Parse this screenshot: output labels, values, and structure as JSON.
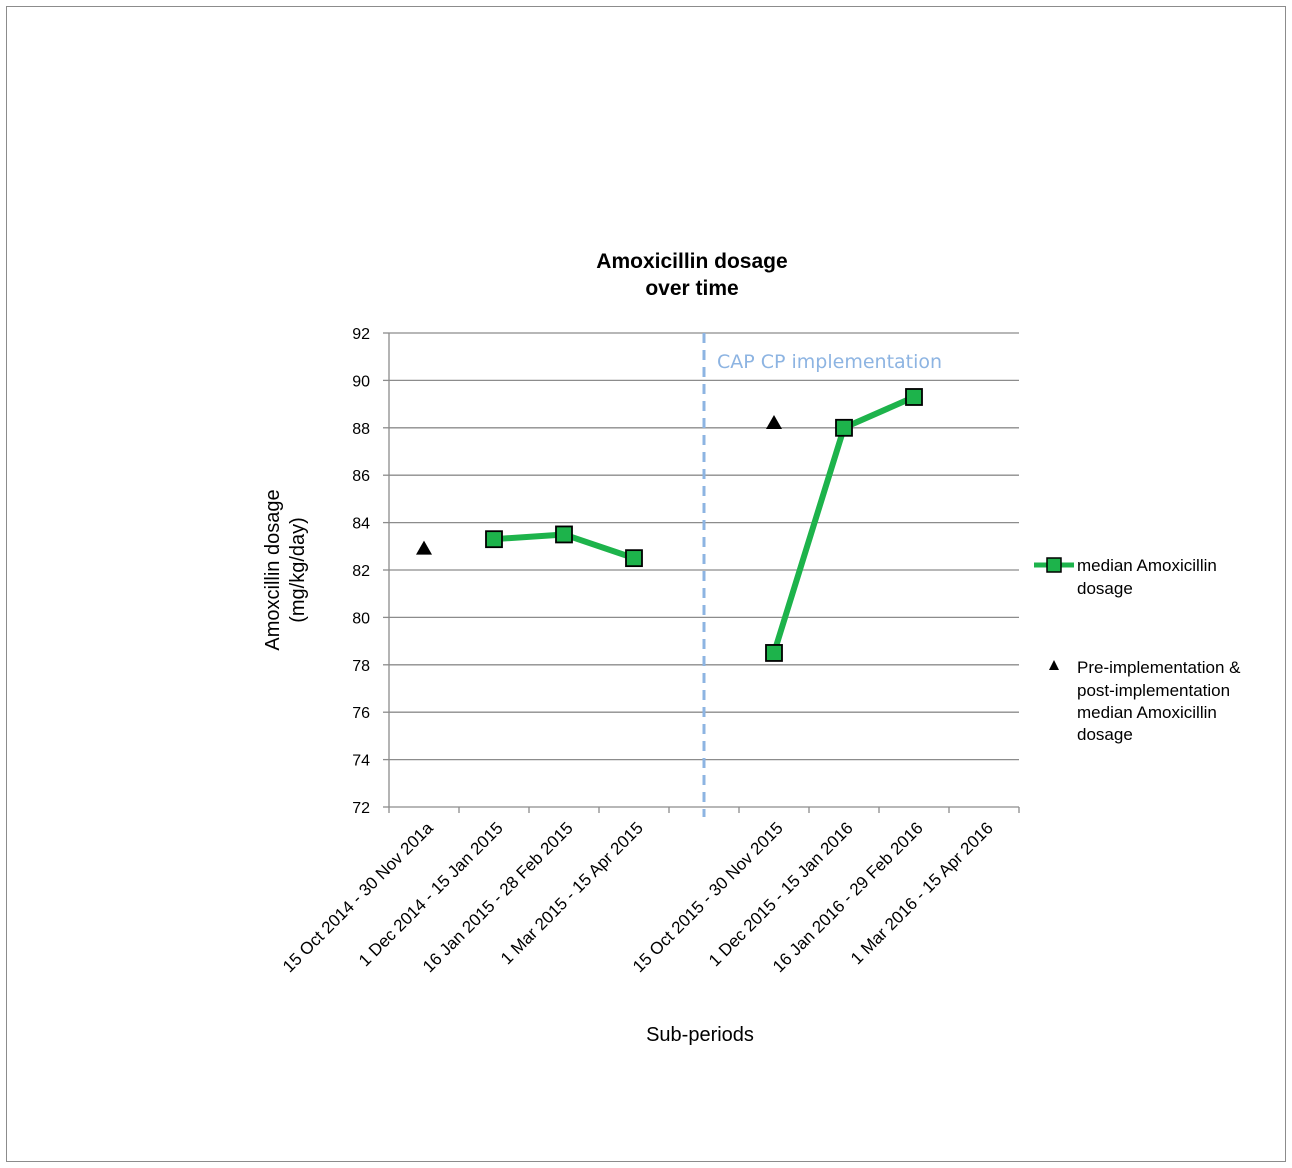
{
  "chart_data": {
    "type": "line",
    "title_lines": [
      "Amoxicillin dosage",
      "over time"
    ],
    "xlabel": "Sub-periods",
    "ylabel_lines": [
      "Amoxcillin dosage",
      "(mg/kg/day)"
    ],
    "ylim": [
      72,
      92
    ],
    "yticks": [
      72,
      74,
      76,
      78,
      80,
      82,
      84,
      86,
      88,
      90,
      92
    ],
    "categories": [
      "15 Oct 2014 - 30 Nov 201a",
      "1 Dec 2014 - 15 Jan 2015",
      "16 Jan 2015 - 28 Feb 2015",
      "1 Mar 2015 - 15 Apr 2015",
      "",
      "15 Oct 2015 - 30 Nov 2015",
      "1 Dec 2015 - 15 Jan 2016",
      "16 Jan 2016 - 29 Feb 2016",
      "1 Mar 2016 - 15 Apr 2016"
    ],
    "series": [
      {
        "name": "median Amoxicillin dosage",
        "marker": "square",
        "color": "#1db34b",
        "segments": [
          [
            {
              "category": 1,
              "value": 83.3
            },
            {
              "category": 2,
              "value": 83.5
            },
            {
              "category": 3,
              "value": 82.5
            }
          ],
          [
            {
              "category": 5,
              "value": 78.5
            },
            {
              "category": 6,
              "value": 88.0
            },
            {
              "category": 7,
              "value": 89.3
            }
          ]
        ]
      },
      {
        "name": "Pre-implementation & post-implementation median Amoxicillin dosage",
        "legend_lines": [
          "Pre-implementation &",
          "post-implementation",
          "median Amoxicillin",
          "dosage"
        ],
        "marker": "triangle",
        "color": "#000000",
        "points": [
          {
            "category": 0,
            "value": 82.9
          },
          {
            "category": 5,
            "value": 88.2
          }
        ]
      }
    ],
    "legend_lines_series1": [
      "median Amoxicillin",
      "dosage"
    ],
    "annotation": {
      "text": "CAP CP implementation",
      "color": "#8db4e2",
      "at_category": 4
    },
    "grid": true,
    "legend_position": "right"
  }
}
